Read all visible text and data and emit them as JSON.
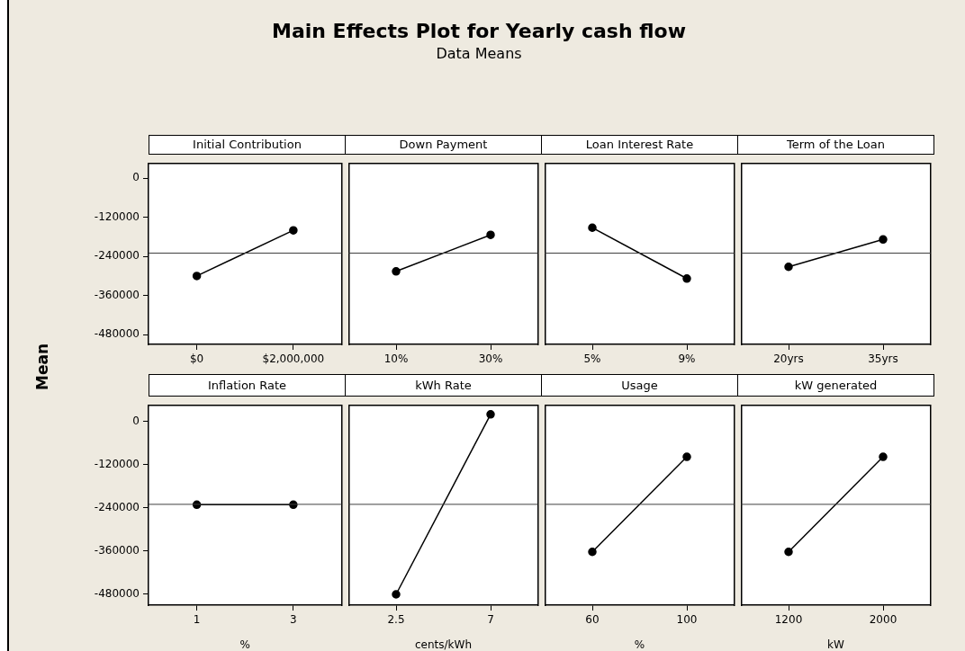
{
  "chart_data": [
    {
      "type": "other",
      "title": "Main Effects Plot for Yearly cash flow",
      "subtitle": "Data Means",
      "ylabel": "Mean"
    },
    {
      "type": "line",
      "title": "Initial Contribution",
      "categories": [
        "$0",
        "$2,000,000"
      ],
      "series": [
        {
          "color": "#000000",
          "values": [
            -300000,
            -160000
          ]
        }
      ],
      "ylim": [
        -510000,
        44000
      ],
      "yticks": [
        -480000,
        -360000,
        -240000,
        -120000,
        0
      ],
      "ref_lines": [
        {
          "axis": "y",
          "value": -230000,
          "color": "#404040"
        }
      ],
      "marker": "circle",
      "line_style": "solid",
      "grid": false
    },
    {
      "type": "line",
      "title": "Down Payment",
      "categories": [
        "10%",
        "30%"
      ],
      "series": [
        {
          "color": "#000000",
          "values": [
            -286000,
            -174000
          ]
        }
      ],
      "ylim": [
        -510000,
        44000
      ],
      "yticks": [
        -480000,
        -360000,
        -240000,
        -120000,
        0
      ],
      "ref_lines": [
        {
          "axis": "y",
          "value": -230000,
          "color": "#404040"
        }
      ],
      "marker": "circle",
      "line_style": "solid",
      "grid": false,
      "tick_labels": "x"
    },
    {
      "type": "line",
      "title": "Loan Interest Rate",
      "categories": [
        "5%",
        "9%"
      ],
      "series": [
        {
          "color": "#000000",
          "values": [
            -152000,
            -308000
          ]
        }
      ],
      "ylim": [
        -510000,
        44000
      ],
      "yticks": [
        -480000,
        -360000,
        -240000,
        -120000,
        0
      ],
      "ref_lines": [
        {
          "axis": "y",
          "value": -230000,
          "color": "#404040"
        }
      ],
      "marker": "circle",
      "line_style": "solid",
      "grid": false,
      "tick_labels": "x"
    },
    {
      "type": "line",
      "title": "Term of the Loan",
      "categories": [
        "20yrs",
        "35yrs"
      ],
      "series": [
        {
          "color": "#000000",
          "values": [
            -272000,
            -188000
          ]
        }
      ],
      "ylim": [
        -510000,
        44000
      ],
      "yticks": [
        -480000,
        -360000,
        -240000,
        -120000,
        0
      ],
      "ref_lines": [
        {
          "axis": "y",
          "value": -230000,
          "color": "#404040"
        }
      ],
      "marker": "circle",
      "line_style": "solid",
      "grid": false,
      "tick_labels": "x"
    },
    {
      "type": "line",
      "title": "Inflation Rate",
      "xlabel": "%",
      "categories": [
        "1",
        "3"
      ],
      "series": [
        {
          "color": "#000000",
          "values": [
            -231000,
            -231000
          ]
        }
      ],
      "ylim": [
        -510000,
        44000
      ],
      "yticks": [
        -480000,
        -360000,
        -240000,
        -120000,
        0
      ],
      "ref_lines": [
        {
          "axis": "y",
          "value": -230000,
          "color": "#404040"
        }
      ],
      "marker": "circle",
      "line_style": "solid",
      "grid": false
    },
    {
      "type": "line",
      "title": "kWh Rate",
      "xlabel": "cents/kWh",
      "categories": [
        "2.5",
        "7"
      ],
      "series": [
        {
          "color": "#000000",
          "values": [
            -480000,
            20000
          ]
        }
      ],
      "ylim": [
        -510000,
        44000
      ],
      "yticks": [
        -480000,
        -360000,
        -240000,
        -120000,
        0
      ],
      "ref_lines": [
        {
          "axis": "y",
          "value": -230000,
          "color": "#404040"
        }
      ],
      "marker": "circle",
      "line_style": "solid",
      "grid": false,
      "tick_labels": "x"
    },
    {
      "type": "line",
      "title": "Usage",
      "xlabel": "%",
      "categories": [
        "60",
        "100"
      ],
      "series": [
        {
          "color": "#000000",
          "values": [
            -362000,
            -98000
          ]
        }
      ],
      "ylim": [
        -510000,
        44000
      ],
      "yticks": [
        -480000,
        -360000,
        -240000,
        -120000,
        0
      ],
      "ref_lines": [
        {
          "axis": "y",
          "value": -230000,
          "color": "#404040"
        }
      ],
      "marker": "circle",
      "line_style": "solid",
      "grid": false,
      "tick_labels": "x"
    },
    {
      "type": "line",
      "title": "kW generated",
      "xlabel": "kW",
      "categories": [
        "1200",
        "2000"
      ],
      "series": [
        {
          "color": "#000000",
          "values": [
            -362000,
            -98000
          ]
        }
      ],
      "ylim": [
        -510000,
        44000
      ],
      "yticks": [
        -480000,
        -360000,
        -240000,
        -120000,
        0
      ],
      "ref_lines": [
        {
          "axis": "y",
          "value": -230000,
          "color": "#404040"
        }
      ],
      "marker": "circle",
      "line_style": "solid",
      "grid": false,
      "tick_labels": "x"
    }
  ]
}
